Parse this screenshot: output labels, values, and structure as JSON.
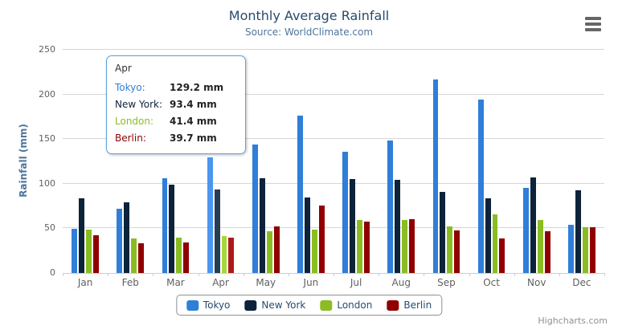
{
  "chart": {
    "title": "Monthly Average Rainfall",
    "subtitle": "Source: WorldClimate.com",
    "y_axis_title": "Rainfall (mm)",
    "credits": "Highcharts.com",
    "menu_icon": "hamburger-icon",
    "colors": {
      "title_text": "#274b6d",
      "subtitle_text": "#4d759e",
      "axis_label_text": "#606060",
      "gridline": "#d6d6d6",
      "axis_line": "#c0d0e0"
    }
  },
  "chart_data": {
    "type": "bar",
    "title": "Monthly Average Rainfall",
    "subtitle": "Source: WorldClimate.com",
    "xlabel": "",
    "ylabel": "Rainfall (mm)",
    "ylim": [
      0,
      250
    ],
    "yticks": [
      0,
      50,
      100,
      150,
      200,
      250
    ],
    "grid": true,
    "legend_position": "bottom",
    "categories": [
      "Jan",
      "Feb",
      "Mar",
      "Apr",
      "May",
      "Jun",
      "Jul",
      "Aug",
      "Sep",
      "Oct",
      "Nov",
      "Dec"
    ],
    "hovered_category": "Apr",
    "series": [
      {
        "name": "Tokyo",
        "color": "#2f7ed8",
        "hover_color": "#4a96f0",
        "values": [
          49.9,
          71.5,
          106.4,
          129.2,
          144.0,
          176.0,
          135.6,
          148.5,
          216.4,
          194.1,
          95.6,
          54.4
        ]
      },
      {
        "name": "New York",
        "color": "#0d233a",
        "hover_color": "#273d54",
        "values": [
          83.6,
          78.8,
          98.5,
          93.4,
          106.0,
          84.5,
          105.0,
          104.3,
          91.2,
          83.5,
          106.6,
          92.3
        ]
      },
      {
        "name": "London",
        "color": "#8bbc21",
        "hover_color": "#a5d63b",
        "values": [
          48.9,
          38.8,
          39.3,
          41.4,
          47.0,
          48.3,
          59.0,
          59.6,
          52.4,
          65.2,
          59.3,
          51.2
        ]
      },
      {
        "name": "Berlin",
        "color": "#910000",
        "hover_color": "#ab1a1a",
        "values": [
          42.4,
          33.2,
          34.5,
          39.7,
          52.6,
          75.5,
          57.4,
          60.4,
          47.6,
          39.1,
          46.8,
          51.1
        ]
      }
    ]
  },
  "tooltip": {
    "header": "Apr",
    "border_color": "#5ea2e2",
    "rows": [
      {
        "label": "Tokyo:",
        "value": "129.2 mm",
        "color": "#2f7ed8"
      },
      {
        "label": "New York:",
        "value": "93.4 mm",
        "color": "#0d233a"
      },
      {
        "label": "London:",
        "value": "41.4 mm",
        "color": "#8bbc21"
      },
      {
        "label": "Berlin:",
        "value": "39.7 mm",
        "color": "#910000"
      }
    ]
  },
  "legend": {
    "items": [
      {
        "label": "Tokyo",
        "color": "#2f7ed8"
      },
      {
        "label": "New York",
        "color": "#0d233a"
      },
      {
        "label": "London",
        "color": "#8bbc21"
      },
      {
        "label": "Berlin",
        "color": "#910000"
      }
    ]
  }
}
